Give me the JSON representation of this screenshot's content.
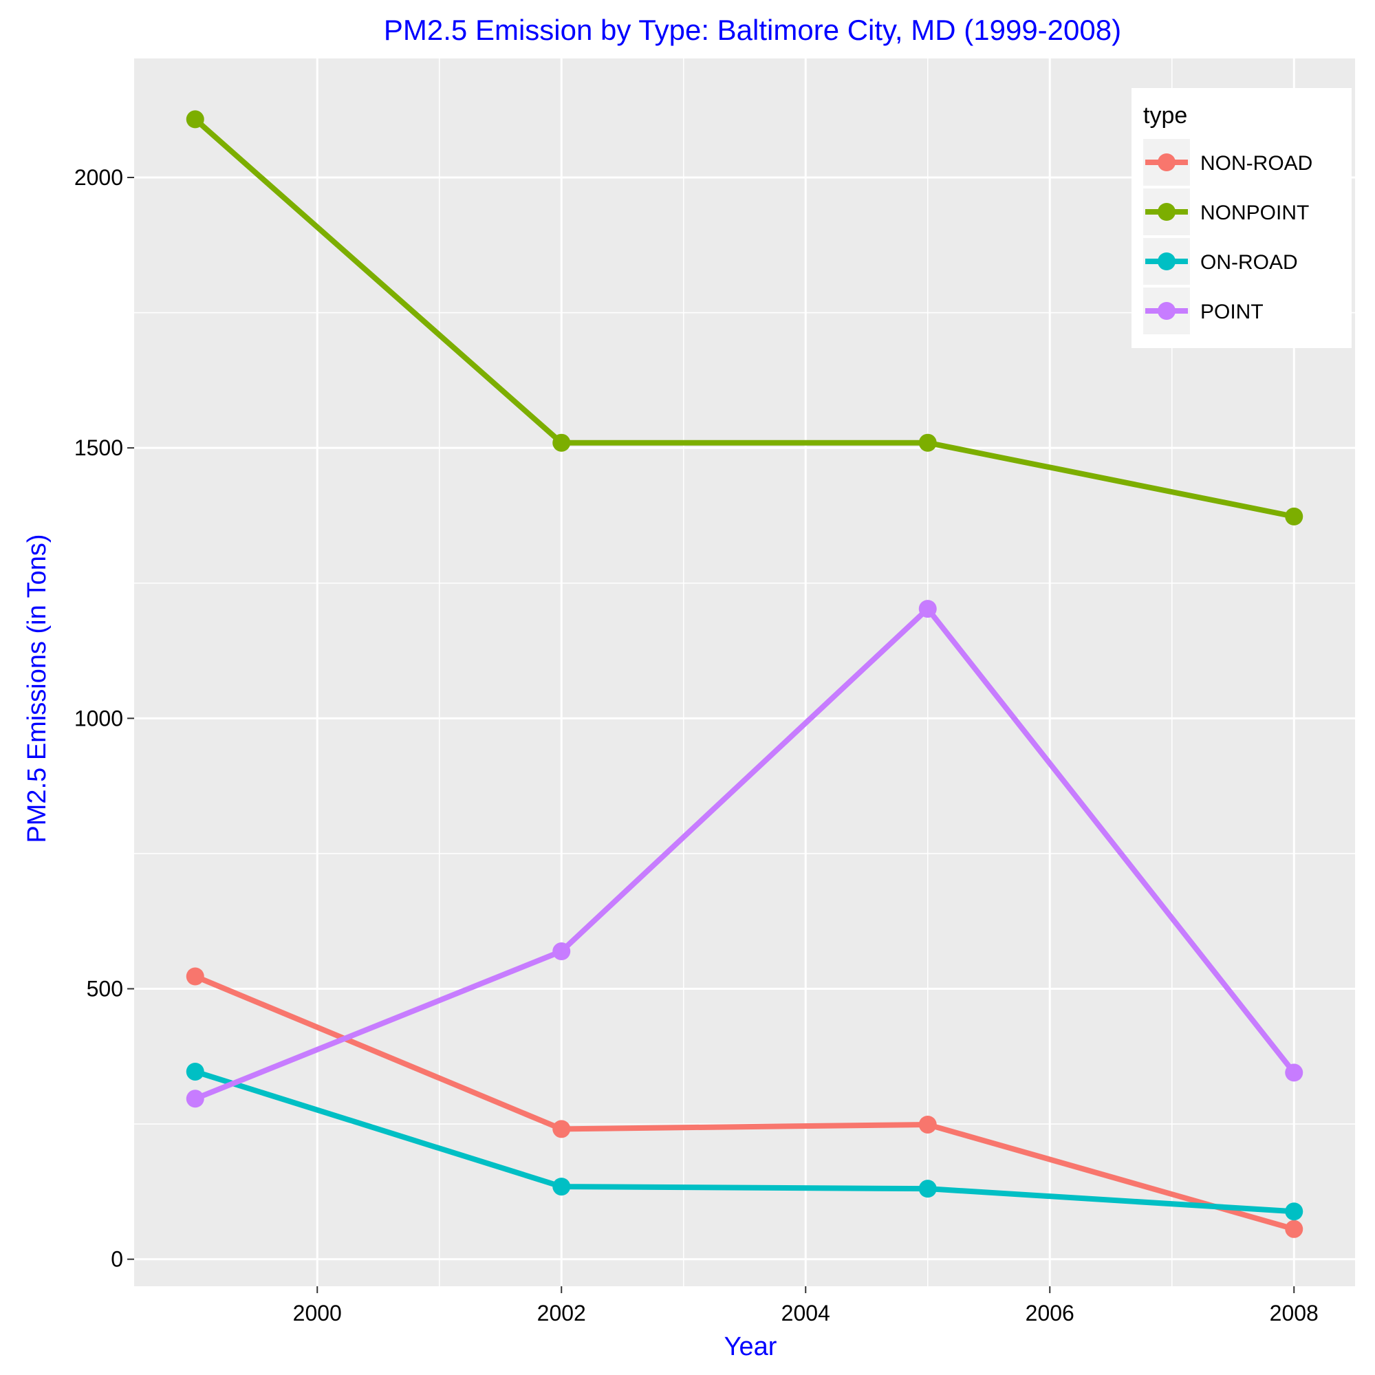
{
  "chart_data": {
    "type": "line",
    "title": "PM2.5 Emission by Type: Baltimore City, MD (1999-2008)",
    "xlabel": "Year",
    "ylabel": "PM2.5 Emissions (in Tons)",
    "x": [
      1999,
      2002,
      2005,
      2008
    ],
    "xlim": [
      1998.5,
      2008.5
    ],
    "ylim": [
      -50,
      2220
    ],
    "x_ticks": [
      2000,
      2002,
      2004,
      2006,
      2008
    ],
    "y_ticks": [
      0,
      500,
      1000,
      1500,
      2000
    ],
    "grid": true,
    "legend": {
      "title": "type",
      "position": "top-right"
    },
    "series": [
      {
        "name": "NON-ROAD",
        "color": "#F8766D",
        "values": [
          522.9,
          240.8,
          248.9,
          55.8
        ]
      },
      {
        "name": "NONPOINT",
        "color": "#7CAE00",
        "values": [
          2107.6,
          1509.5,
          1509.5,
          1373.2
        ]
      },
      {
        "name": "ON-ROAD",
        "color": "#00BFC4",
        "values": [
          346.8,
          134.3,
          130.4,
          88.3
        ]
      },
      {
        "name": "POINT",
        "color": "#C77CFF",
        "values": [
          296.8,
          569.3,
          1202.5,
          344.98
        ]
      }
    ]
  }
}
